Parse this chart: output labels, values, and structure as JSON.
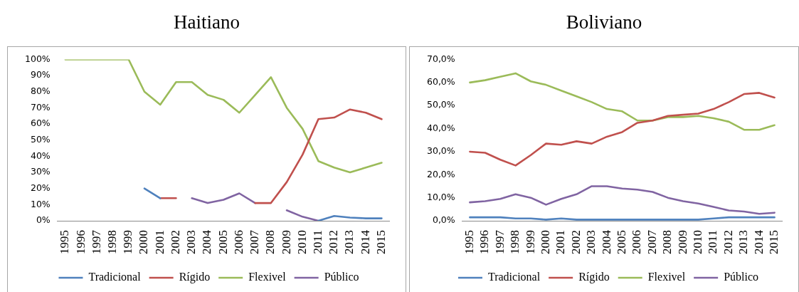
{
  "chart_data": [
    {
      "type": "line",
      "title": "Haitiano",
      "categories": [
        "1995",
        "1996",
        "1997",
        "1998",
        "1999",
        "2000",
        "2001",
        "2002",
        "2003",
        "2004",
        "2005",
        "2006",
        "2007",
        "2008",
        "2009",
        "2010",
        "2011",
        "2012",
        "2013",
        "2014",
        "2015"
      ],
      "series": [
        {
          "name": "Tradicional",
          "color": "#4f81bd",
          "values": [
            null,
            null,
            null,
            null,
            null,
            20,
            14,
            null,
            null,
            null,
            null,
            null,
            null,
            null,
            null,
            null,
            0,
            3,
            2,
            1.5,
            1.5
          ]
        },
        {
          "name": "Rígido",
          "color": "#c0504d",
          "values": [
            null,
            null,
            null,
            null,
            null,
            null,
            14,
            14,
            null,
            null,
            null,
            null,
            11,
            11,
            24,
            41,
            63,
            64,
            69,
            67,
            63
          ]
        },
        {
          "name": "Flexivel",
          "color": "#9bbb59",
          "values": [
            100,
            100,
            100,
            100,
            100,
            80,
            72,
            86,
            86,
            78,
            75,
            67,
            78,
            89,
            70,
            57,
            37,
            33,
            30,
            33,
            36
          ]
        },
        {
          "name": "Público",
          "color": "#8064a2",
          "values": [
            null,
            null,
            null,
            null,
            null,
            null,
            null,
            null,
            14,
            11,
            13,
            17,
            11,
            null,
            6.5,
            2.5,
            0,
            null,
            null,
            null,
            null
          ]
        }
      ],
      "ylim": [
        0,
        100
      ],
      "yticks": [
        {
          "value": 0,
          "label": "0%"
        },
        {
          "value": 10,
          "label": "10%"
        },
        {
          "value": 20,
          "label": "20%"
        },
        {
          "value": 30,
          "label": "30%"
        },
        {
          "value": 40,
          "label": "40%"
        },
        {
          "value": 50,
          "label": "50%"
        },
        {
          "value": 60,
          "label": "60%"
        },
        {
          "value": 70,
          "label": "70%"
        },
        {
          "value": 80,
          "label": "80%"
        },
        {
          "value": 90,
          "label": "90%"
        },
        {
          "value": 100,
          "label": "100%"
        }
      ],
      "legend": "bottom"
    },
    {
      "type": "line",
      "title": "Boliviano",
      "categories": [
        "1995",
        "1996",
        "1997",
        "1998",
        "1999",
        "2000",
        "2001",
        "2002",
        "2003",
        "2004",
        "2005",
        "2006",
        "2007",
        "2008",
        "2009",
        "2010",
        "2011",
        "2012",
        "2013",
        "2014",
        "2015"
      ],
      "series": [
        {
          "name": "Tradicional",
          "color": "#4f81bd",
          "values": [
            1.5,
            1.5,
            1.5,
            1,
            1,
            0.5,
            1,
            0.5,
            0.5,
            0.5,
            0.5,
            0.5,
            0.5,
            0.5,
            0.5,
            0.5,
            1,
            1.5,
            1.5,
            1.5,
            1.5
          ]
        },
        {
          "name": "Rígido",
          "color": "#c0504d",
          "values": [
            30,
            29.5,
            26.5,
            24,
            28.5,
            33.5,
            33,
            34.5,
            33.5,
            36.5,
            38.5,
            42.5,
            43.5,
            45.5,
            46,
            46.5,
            48.5,
            51.5,
            55,
            55.5,
            53.5
          ]
        },
        {
          "name": "Flexivel",
          "color": "#9bbb59",
          "values": [
            60,
            61,
            62.5,
            64,
            60.5,
            59,
            56.5,
            54,
            51.5,
            48.5,
            47.5,
            43.5,
            43.5,
            45,
            45,
            45.5,
            44.5,
            43,
            39.5,
            39.5,
            41.5
          ]
        },
        {
          "name": "Público",
          "color": "#8064a2",
          "values": [
            8,
            8.5,
            9.5,
            11.5,
            10,
            7,
            9.5,
            11.5,
            15,
            15,
            14,
            13.5,
            12.5,
            10,
            8.5,
            7.5,
            6,
            4.5,
            4,
            3,
            3.5
          ]
        }
      ],
      "ylim": [
        0,
        70
      ],
      "yticks": [
        {
          "value": 0,
          "label": "0,0%"
        },
        {
          "value": 10,
          "label": "10,0%"
        },
        {
          "value": 20,
          "label": "20,0%"
        },
        {
          "value": 30,
          "label": "30,0%"
        },
        {
          "value": 40,
          "label": "40,0%"
        },
        {
          "value": 50,
          "label": "50,0%"
        },
        {
          "value": 60,
          "label": "60,0%"
        },
        {
          "value": 70,
          "label": "70,0%"
        }
      ],
      "legend": "bottom"
    }
  ]
}
